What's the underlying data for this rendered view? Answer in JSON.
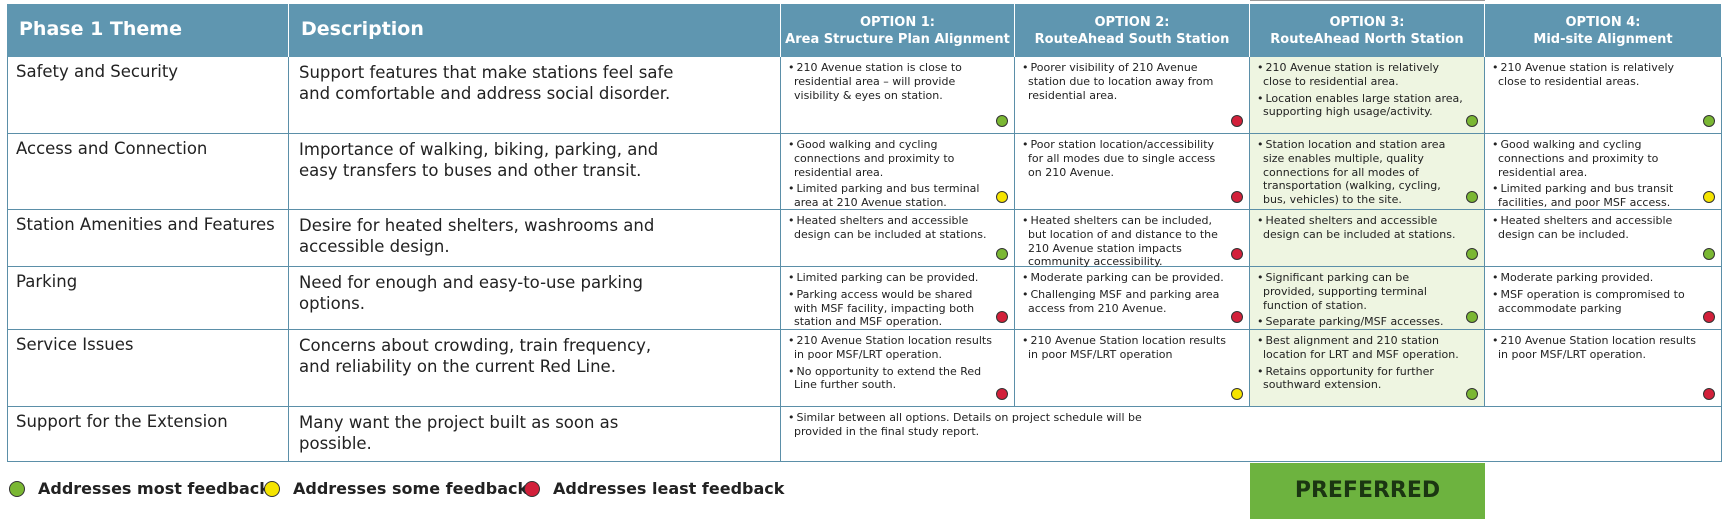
{
  "header": {
    "theme": "Phase 1 Theme",
    "description": "Description",
    "options": [
      {
        "number": "OPTION 1:",
        "name": "Area Structure Plan Alignment"
      },
      {
        "number": "OPTION 2:",
        "name": "RouteAhead South Station"
      },
      {
        "number": "OPTION 3:",
        "name": "RouteAhead North Station",
        "badge": "PREFERRED"
      },
      {
        "number": "OPTION 4:",
        "name": "Mid-site Alignment"
      }
    ]
  },
  "table": {
    "rows": [
      {
        "theme": "Safety and Security",
        "description": "Support features that make stations feel safe and comfortable and address social disorder.",
        "cells": [
          {
            "bullets": [
              "210 Avenue station is close to residential area – will provide visibility & eyes on station."
            ],
            "color": "#7ab733"
          },
          {
            "bullets": [
              "Poorer visibility of 210 Avenue station due to location away from residential area."
            ],
            "color": "#d2203a"
          },
          {
            "bullets": [
              "210 Avenue station is relatively close to residential area.",
              "Location enables large station area, supporting high usage/activity."
            ],
            "color": "#7ab733"
          },
          {
            "bullets": [
              "210 Avenue station is relatively close to residential areas."
            ],
            "color": "#7ab733"
          }
        ]
      },
      {
        "theme": "Access and Connection",
        "description": "Importance of walking, biking, parking, and easy transfers to buses and other transit.",
        "cells": [
          {
            "bullets": [
              "Good walking and cycling connections and proximity to residential area.",
              "Limited parking and bus terminal area at 210 Avenue station."
            ],
            "color": "#f5e400"
          },
          {
            "bullets": [
              "Poor station location/accessibility for all modes due to single access on 210 Avenue."
            ],
            "color": "#d2203a"
          },
          {
            "bullets": [
              "Station location and station area size enables multiple, quality connections for all modes of transportation (walking, cycling, bus, vehicles) to the site."
            ],
            "color": "#7ab733"
          },
          {
            "bullets": [
              "Good walking and cycling connections and proximity to residential area.",
              "Limited parking and bus transit facilities, and poor MSF access."
            ],
            "color": "#f5e400"
          }
        ]
      },
      {
        "theme": "Station Amenities and Features",
        "description": "Desire for heated shelters, washrooms and accessible design.",
        "cells": [
          {
            "bullets": [
              "Heated shelters and accessible design can be included at stations."
            ],
            "color": "#7ab733"
          },
          {
            "bullets": [
              "Heated shelters can be included, but location of and distance to the 210 Avenue station impacts community accessibility."
            ],
            "color": "#d2203a"
          },
          {
            "bullets": [
              "Heated shelters and accessible design can be included at stations."
            ],
            "color": "#7ab733"
          },
          {
            "bullets": [
              "Heated shelters and accessible design can be included."
            ],
            "color": "#7ab733"
          }
        ]
      },
      {
        "theme": "Parking",
        "description": "Need for enough and easy-to-use parking options.",
        "cells": [
          {
            "bullets": [
              "Limited parking can be provided.",
              "Parking access would be shared with MSF facility, impacting both station and MSF operation."
            ],
            "color": "#d2203a"
          },
          {
            "bullets": [
              "Moderate parking can be provided.",
              "Challenging MSF and parking area access from 210 Avenue."
            ],
            "color": "#d2203a"
          },
          {
            "bullets": [
              "Significant parking can be provided, supporting terminal function of station.",
              "Separate parking/MSF accesses."
            ],
            "color": "#7ab733"
          },
          {
            "bullets": [
              "Moderate parking provided.",
              "MSF operation is compromised to accommodate parking"
            ],
            "color": "#d2203a"
          }
        ]
      },
      {
        "theme": "Service Issues",
        "description": "Concerns about crowding, train frequency, and reliability on the current Red Line.",
        "cells": [
          {
            "bullets": [
              "210 Avenue Station location results in poor MSF/LRT operation.",
              "No opportunity to extend the Red Line further south."
            ],
            "color": "#d2203a"
          },
          {
            "bullets": [
              "210 Avenue Station location results in poor MSF/LRT operation"
            ],
            "color": "#f5e400"
          },
          {
            "bullets": [
              "Best alignment and 210 station location for LRT and MSF operation.",
              "Retains opportunity for further southward extension."
            ],
            "color": "#7ab733"
          },
          {
            "bullets": [
              "210 Avenue Station location results in poor MSF/LRT operation."
            ],
            "color": "#d2203a"
          }
        ]
      },
      {
        "theme": "Support for the Extension",
        "description": "Many want the project built as soon as possible.",
        "summary": {
          "bullets": [
            "Similar between all options. Details on project schedule will be provided in the final study report."
          ]
        }
      }
    ]
  },
  "legend": [
    {
      "label": "Addresses most feedback",
      "color": "#7ab733"
    },
    {
      "label": "Addresses some feedback",
      "color": "#f5e400"
    },
    {
      "label": "Addresses least feedback",
      "color": "#d2203a"
    }
  ]
}
